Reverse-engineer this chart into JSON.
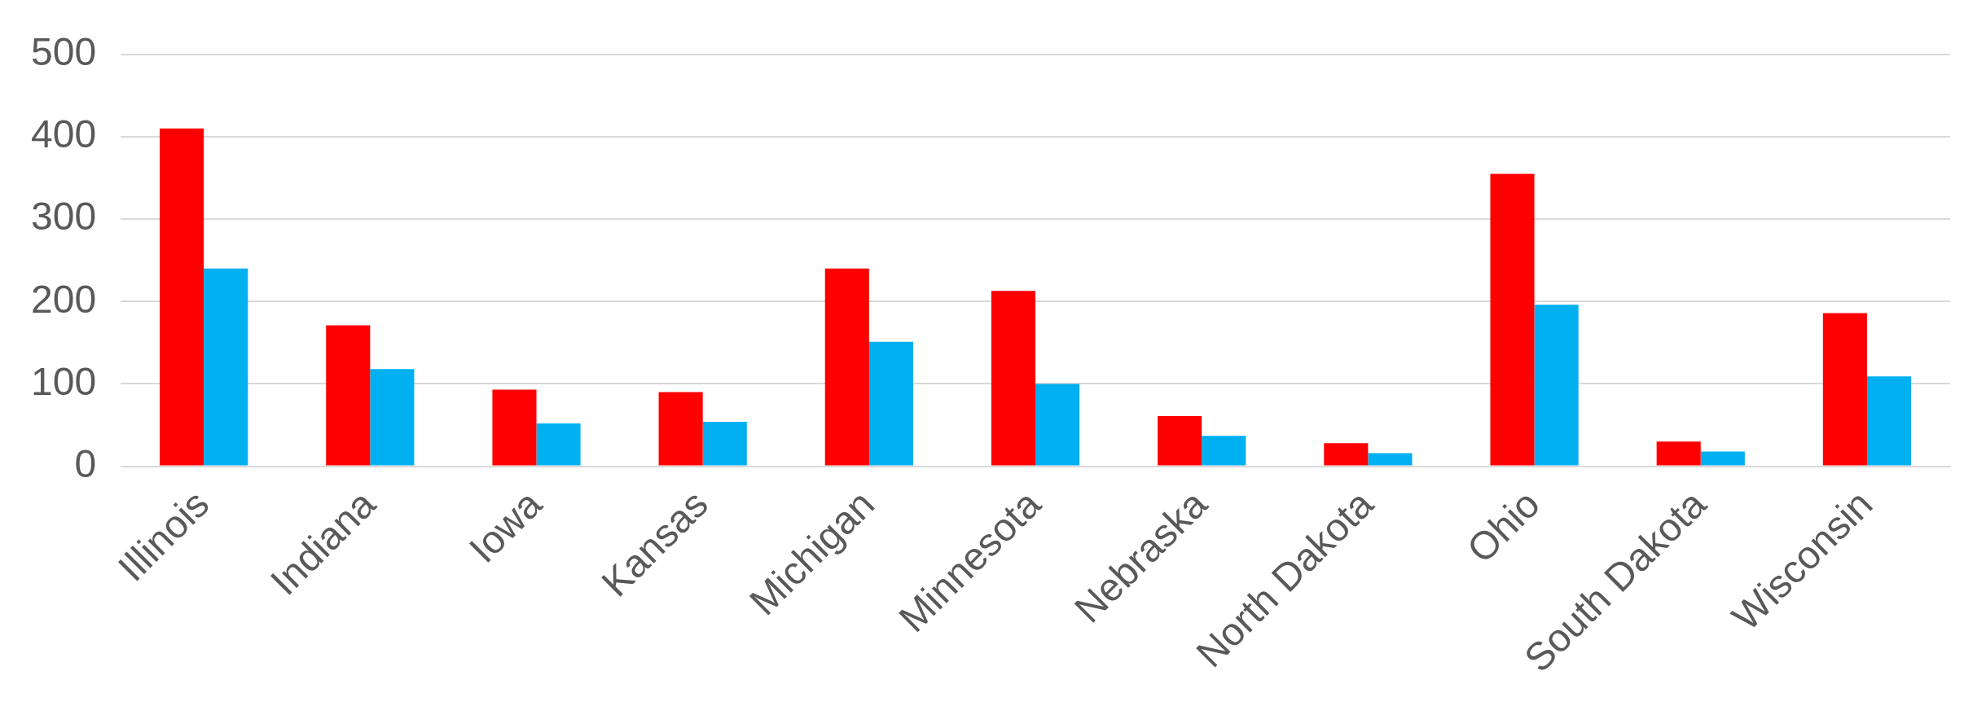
{
  "chart_data": {
    "type": "bar",
    "categories": [
      "Illinois",
      "Indiana",
      "Iowa",
      "Kansas",
      "Michigan",
      "Minnesota",
      "Nebraska",
      "North Dakota",
      "Ohio",
      "South Dakota",
      "Wisconsin"
    ],
    "series": [
      {
        "color": "#ff0000",
        "values": [
          410,
          171,
          93,
          90,
          240,
          213,
          61,
          28,
          355,
          30,
          186
        ]
      },
      {
        "color": "#00b0f0",
        "values": [
          240,
          118,
          52,
          54,
          151,
          100,
          37,
          16,
          196,
          18,
          109
        ]
      }
    ],
    "ylim": [
      0,
      500
    ],
    "yticks": [
      0,
      100,
      200,
      300,
      400,
      500
    ],
    "grid": "y",
    "legend": false
  }
}
